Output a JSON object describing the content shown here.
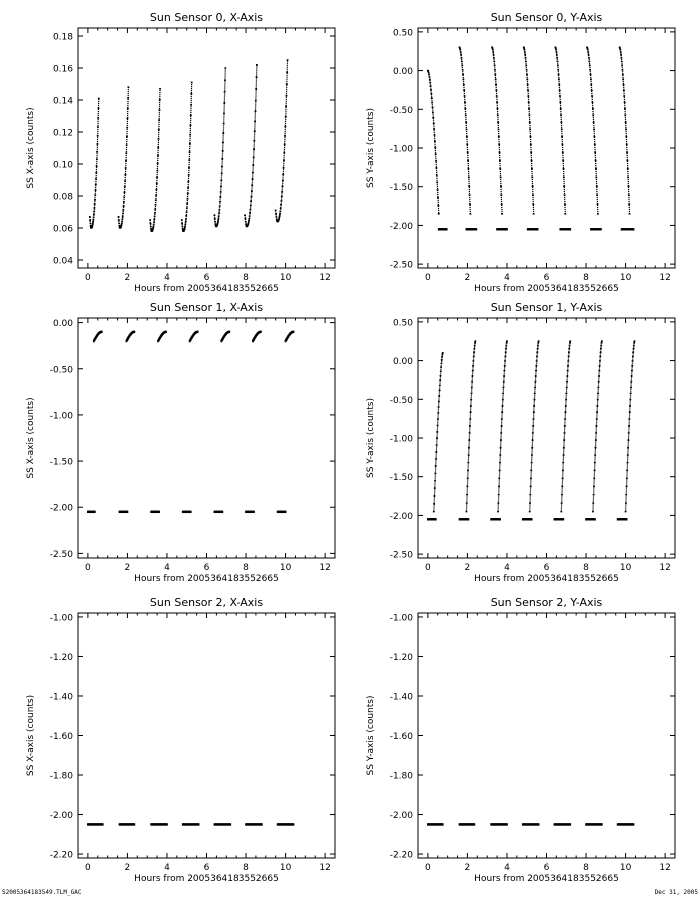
{
  "footer": {
    "filename": "S2005364183549.TLM_GAC",
    "date": "Dec 31, 2005"
  },
  "chart_data": [
    {
      "type": "scatter",
      "title": "Sun Sensor 0, X-Axis",
      "xlabel": "Hours from 2005364183552665",
      "ylabel": "SS X-axis (counts)",
      "xlim": [
        -0.5,
        12.5
      ],
      "ylim": [
        0.035,
        0.185
      ],
      "xticks": [
        0,
        2,
        4,
        6,
        8,
        10,
        12
      ],
      "xtick_labels": [
        "0",
        "2",
        "4",
        "6",
        "8",
        "10",
        "12"
      ],
      "yticks": [
        0.04,
        0.06,
        0.08,
        0.1,
        0.12,
        0.14,
        0.16,
        0.18
      ],
      "ytick_labels": [
        "0.04",
        "0.06",
        "0.08",
        "0.10",
        "0.12",
        "0.14",
        "0.16",
        "0.18"
      ],
      "segments": [
        {
          "kind": "hook",
          "x0": 0.1,
          "x1": 0.55,
          "ymin": 0.06,
          "ypeak": 0.141
        },
        {
          "kind": "hook",
          "x0": 1.55,
          "x1": 2.05,
          "ymin": 0.06,
          "ypeak": 0.148
        },
        {
          "kind": "hook",
          "x0": 3.15,
          "x1": 3.65,
          "ymin": 0.058,
          "ypeak": 0.147
        },
        {
          "kind": "hook",
          "x0": 4.75,
          "x1": 5.25,
          "ymin": 0.058,
          "ypeak": 0.151
        },
        {
          "kind": "hook",
          "x0": 6.4,
          "x1": 6.95,
          "ymin": 0.061,
          "ypeak": 0.16
        },
        {
          "kind": "hook",
          "x0": 7.95,
          "x1": 8.55,
          "ymin": 0.061,
          "ypeak": 0.162
        },
        {
          "kind": "hook",
          "x0": 9.5,
          "x1": 10.1,
          "ymin": 0.064,
          "ypeak": 0.165
        }
      ]
    },
    {
      "type": "scatter",
      "title": "Sun Sensor 0, Y-Axis",
      "xlabel": "Hours from 2005364183552665",
      "ylabel": "SS Y-axis (counts)",
      "xlim": [
        -0.5,
        12.5
      ],
      "ylim": [
        -2.55,
        0.55
      ],
      "xticks": [
        0,
        2,
        4,
        6,
        8,
        10,
        12
      ],
      "xtick_labels": [
        "0",
        "2",
        "4",
        "6",
        "8",
        "10",
        "12"
      ],
      "yticks": [
        -2.5,
        -2.0,
        -1.5,
        -1.0,
        -0.5,
        0.0,
        0.5
      ],
      "ytick_labels": [
        "-2.50",
        "-2.00",
        "-1.50",
        "-1.00",
        "-0.50",
        "0.00",
        "0.50"
      ],
      "segments": [
        {
          "kind": "fall",
          "x0": 0.0,
          "x1": 0.55,
          "y0": 0.0,
          "y1": -1.85
        },
        {
          "kind": "fall",
          "x0": 1.6,
          "x1": 2.15,
          "y0": 0.3,
          "y1": -1.85
        },
        {
          "kind": "fall",
          "x0": 3.25,
          "x1": 3.75,
          "y0": 0.3,
          "y1": -1.85
        },
        {
          "kind": "fall",
          "x0": 4.85,
          "x1": 5.35,
          "y0": 0.3,
          "y1": -1.85
        },
        {
          "kind": "fall",
          "x0": 6.45,
          "x1": 6.95,
          "y0": 0.3,
          "y1": -1.85
        },
        {
          "kind": "fall",
          "x0": 8.05,
          "x1": 8.6,
          "y0": 0.3,
          "y1": -1.85
        },
        {
          "kind": "fall",
          "x0": 9.7,
          "x1": 10.2,
          "y0": 0.3,
          "y1": -1.85
        },
        {
          "kind": "flat",
          "x0": 0.55,
          "x1": 0.95,
          "y": -2.05
        },
        {
          "kind": "flat",
          "x0": 1.95,
          "x1": 2.45,
          "y": -2.05
        },
        {
          "kind": "flat",
          "x0": 3.5,
          "x1": 4.0,
          "y": -2.05
        },
        {
          "kind": "flat",
          "x0": 5.05,
          "x1": 5.55,
          "y": -2.05
        },
        {
          "kind": "flat",
          "x0": 6.7,
          "x1": 7.2,
          "y": -2.05
        },
        {
          "kind": "flat",
          "x0": 8.25,
          "x1": 8.75,
          "y": -2.05
        },
        {
          "kind": "flat",
          "x0": 9.8,
          "x1": 10.4,
          "y": -2.05
        }
      ]
    },
    {
      "type": "scatter",
      "title": "Sun Sensor 1, X-Axis",
      "xlabel": "Hours from 2005364183552665",
      "ylabel": "SS X-axis (counts)",
      "xlim": [
        -0.5,
        12.5
      ],
      "ylim": [
        -2.55,
        0.05
      ],
      "xticks": [
        0,
        2,
        4,
        6,
        8,
        10,
        12
      ],
      "xtick_labels": [
        "0",
        "2",
        "4",
        "6",
        "8",
        "10",
        "12"
      ],
      "yticks": [
        -2.5,
        -2.0,
        -1.5,
        -1.0,
        -0.5,
        0.0
      ],
      "ytick_labels": [
        "-2.50",
        "-2.00",
        "-1.50",
        "-1.00",
        "-0.50",
        "0.00"
      ],
      "segments": [
        {
          "kind": "arc",
          "x0": 0.3,
          "x1": 0.7,
          "y0": -0.2,
          "y1": -0.1
        },
        {
          "kind": "arc",
          "x0": 1.95,
          "x1": 2.35,
          "y0": -0.2,
          "y1": -0.1
        },
        {
          "kind": "arc",
          "x0": 3.55,
          "x1": 3.95,
          "y0": -0.2,
          "y1": -0.1
        },
        {
          "kind": "arc",
          "x0": 5.15,
          "x1": 5.55,
          "y0": -0.2,
          "y1": -0.1
        },
        {
          "kind": "arc",
          "x0": 6.75,
          "x1": 7.15,
          "y0": -0.2,
          "y1": -0.1
        },
        {
          "kind": "arc",
          "x0": 8.35,
          "x1": 8.75,
          "y0": -0.2,
          "y1": -0.1
        },
        {
          "kind": "arc",
          "x0": 10.0,
          "x1": 10.4,
          "y0": -0.2,
          "y1": -0.1
        },
        {
          "kind": "flat",
          "x0": 0.0,
          "x1": 0.35,
          "y": -2.05
        },
        {
          "kind": "flat",
          "x0": 1.6,
          "x1": 2.0,
          "y": -2.05
        },
        {
          "kind": "flat",
          "x0": 3.2,
          "x1": 3.6,
          "y": -2.05
        },
        {
          "kind": "flat",
          "x0": 4.8,
          "x1": 5.2,
          "y": -2.05
        },
        {
          "kind": "flat",
          "x0": 6.4,
          "x1": 6.8,
          "y": -2.05
        },
        {
          "kind": "flat",
          "x0": 8.0,
          "x1": 8.4,
          "y": -2.05
        },
        {
          "kind": "flat",
          "x0": 9.6,
          "x1": 10.0,
          "y": -2.05
        }
      ]
    },
    {
      "type": "scatter",
      "title": "Sun Sensor 1, Y-Axis",
      "xlabel": "Hours from 2005364183552665",
      "ylabel": "SS Y-axis (counts)",
      "xlim": [
        -0.5,
        12.5
      ],
      "ylim": [
        -2.55,
        0.55
      ],
      "xticks": [
        0,
        2,
        4,
        6,
        8,
        10,
        12
      ],
      "xtick_labels": [
        "0",
        "2",
        "4",
        "6",
        "8",
        "10",
        "12"
      ],
      "yticks": [
        -2.5,
        -2.0,
        -1.5,
        -1.0,
        -0.5,
        0.0,
        0.5
      ],
      "ytick_labels": [
        "-2.50",
        "-2.00",
        "-1.50",
        "-1.00",
        "-0.50",
        "0.00",
        "0.50"
      ],
      "segments": [
        {
          "kind": "rise",
          "x0": 0.3,
          "x1": 0.75,
          "y0": -1.95,
          "y1": 0.1
        },
        {
          "kind": "rise",
          "x0": 1.95,
          "x1": 2.4,
          "y0": -1.95,
          "y1": 0.25
        },
        {
          "kind": "rise",
          "x0": 3.55,
          "x1": 4.0,
          "y0": -1.95,
          "y1": 0.25
        },
        {
          "kind": "rise",
          "x0": 5.15,
          "x1": 5.6,
          "y0": -1.95,
          "y1": 0.25
        },
        {
          "kind": "rise",
          "x0": 6.75,
          "x1": 7.2,
          "y0": -1.95,
          "y1": 0.25
        },
        {
          "kind": "rise",
          "x0": 8.35,
          "x1": 8.8,
          "y0": -1.95,
          "y1": 0.25
        },
        {
          "kind": "rise",
          "x0": 10.0,
          "x1": 10.45,
          "y0": -1.95,
          "y1": 0.25
        },
        {
          "kind": "flat",
          "x0": 0.0,
          "x1": 0.4,
          "y": -2.05
        },
        {
          "kind": "flat",
          "x0": 1.6,
          "x1": 2.05,
          "y": -2.05
        },
        {
          "kind": "flat",
          "x0": 3.2,
          "x1": 3.65,
          "y": -2.05
        },
        {
          "kind": "flat",
          "x0": 4.8,
          "x1": 5.25,
          "y": -2.05
        },
        {
          "kind": "flat",
          "x0": 6.4,
          "x1": 6.85,
          "y": -2.05
        },
        {
          "kind": "flat",
          "x0": 8.0,
          "x1": 8.45,
          "y": -2.05
        },
        {
          "kind": "flat",
          "x0": 9.6,
          "x1": 10.05,
          "y": -2.05
        }
      ]
    },
    {
      "type": "scatter",
      "title": "Sun Sensor 2, X-Axis",
      "xlabel": "Hours from 2005364183552665",
      "ylabel": "SS X-axis (counts)",
      "xlim": [
        -0.5,
        12.5
      ],
      "ylim": [
        -2.22,
        -0.98
      ],
      "xticks": [
        0,
        2,
        4,
        6,
        8,
        10,
        12
      ],
      "xtick_labels": [
        "0",
        "2",
        "4",
        "6",
        "8",
        "10",
        "12"
      ],
      "yticks": [
        -2.2,
        -2.0,
        -1.8,
        -1.6,
        -1.4,
        -1.2,
        -1.0
      ],
      "ytick_labels": [
        "-2.20",
        "-2.00",
        "-1.80",
        "-1.60",
        "-1.40",
        "-1.20",
        "-1.00"
      ],
      "segments": [
        {
          "kind": "flat",
          "x0": 0.0,
          "x1": 0.75,
          "y": -2.05
        },
        {
          "kind": "flat",
          "x0": 1.6,
          "x1": 2.35,
          "y": -2.05
        },
        {
          "kind": "flat",
          "x0": 3.2,
          "x1": 4.0,
          "y": -2.05
        },
        {
          "kind": "flat",
          "x0": 4.8,
          "x1": 5.6,
          "y": -2.05
        },
        {
          "kind": "flat",
          "x0": 6.4,
          "x1": 7.2,
          "y": -2.05
        },
        {
          "kind": "flat",
          "x0": 8.0,
          "x1": 8.8,
          "y": -2.05
        },
        {
          "kind": "flat",
          "x0": 9.6,
          "x1": 10.4,
          "y": -2.05
        }
      ]
    },
    {
      "type": "scatter",
      "title": "Sun Sensor 2, Y-Axis",
      "xlabel": "Hours from 2005364183552665",
      "ylabel": "SS Y-axis (counts)",
      "xlim": [
        -0.5,
        12.5
      ],
      "ylim": [
        -2.22,
        -0.98
      ],
      "xticks": [
        0,
        2,
        4,
        6,
        8,
        10,
        12
      ],
      "xtick_labels": [
        "0",
        "2",
        "4",
        "6",
        "8",
        "10",
        "12"
      ],
      "yticks": [
        -2.2,
        -2.0,
        -1.8,
        -1.6,
        -1.4,
        -1.2,
        -1.0
      ],
      "ytick_labels": [
        "-2.20",
        "-2.00",
        "-1.80",
        "-1.60",
        "-1.40",
        "-1.20",
        "-1.00"
      ],
      "segments": [
        {
          "kind": "flat",
          "x0": 0.0,
          "x1": 0.75,
          "y": -2.05
        },
        {
          "kind": "flat",
          "x0": 1.6,
          "x1": 2.35,
          "y": -2.05
        },
        {
          "kind": "flat",
          "x0": 3.2,
          "x1": 4.0,
          "y": -2.05
        },
        {
          "kind": "flat",
          "x0": 4.8,
          "x1": 5.6,
          "y": -2.05
        },
        {
          "kind": "flat",
          "x0": 6.4,
          "x1": 7.2,
          "y": -2.05
        },
        {
          "kind": "flat",
          "x0": 8.0,
          "x1": 8.8,
          "y": -2.05
        },
        {
          "kind": "flat",
          "x0": 9.6,
          "x1": 10.4,
          "y": -2.05
        }
      ]
    }
  ]
}
